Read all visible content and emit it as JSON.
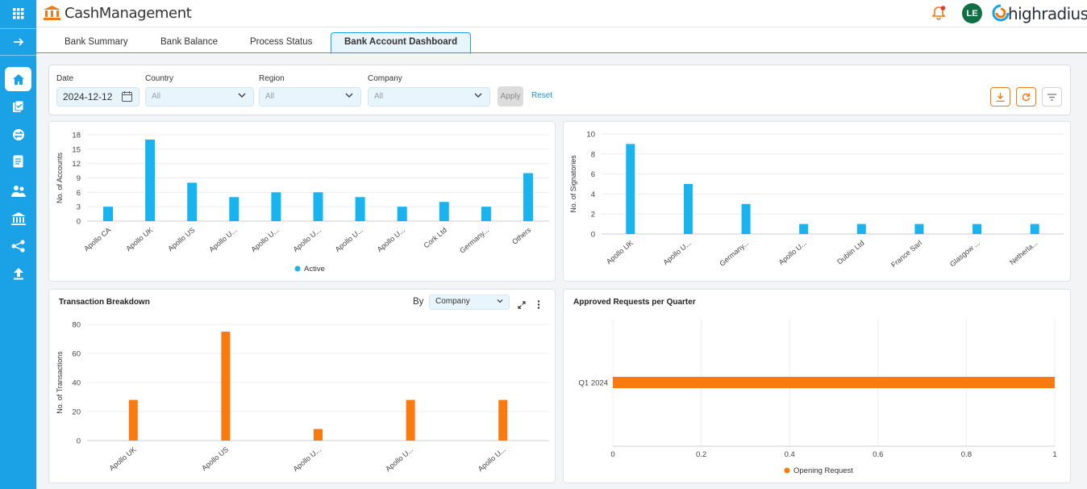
{
  "app": {
    "title": "CashManagement",
    "brand": "highradius",
    "user_initials": "LE"
  },
  "sidebar": {
    "items": [
      "grid-icon",
      "expand-arrow-icon",
      "home-icon",
      "tasks-icon",
      "transfer-icon",
      "document-icon",
      "users-icon",
      "bank-icon",
      "network-icon",
      "upload-icon"
    ]
  },
  "tabs": [
    "Bank Summary",
    "Bank Balance",
    "Process Status",
    "Bank Account Dashboard"
  ],
  "active_tab": "Bank Account Dashboard",
  "filters": {
    "date_label": "Date",
    "date_value": "2024-12-12",
    "country_label": "Country",
    "country_value": "All",
    "region_label": "Region",
    "region_value": "All",
    "company_label": "Company",
    "company_value": "All",
    "apply_label": "Apply",
    "reset_label": "Reset"
  },
  "panels": {
    "transaction_title": "Transaction Breakdown",
    "by_label": "By",
    "by_value": "Company",
    "approved_title": "Approved Requests per Quarter"
  },
  "colors": {
    "accent": "#1aa1e6",
    "orange": "#f97a0f",
    "bar_blue": "#19b3f0"
  },
  "chart_data": [
    {
      "type": "bar",
      "categories": [
        "Apollo CA",
        "Apollo UK",
        "Apollo US",
        "Apollo U...",
        "Apollo U...",
        "Apollo U...",
        "Apollo U...",
        "Apollo U...",
        "Cork Ltd",
        "Germany...",
        "Others"
      ],
      "series": [
        {
          "name": "Active",
          "values": [
            3,
            17,
            8,
            5,
            6,
            6,
            5,
            3,
            4,
            3,
            10
          ]
        }
      ],
      "ylabel": "No. of Accounts",
      "yticks": [
        0,
        3,
        6,
        9,
        12,
        15,
        18
      ],
      "ylim": [
        0,
        18
      ],
      "legend": "bottom"
    },
    {
      "type": "bar",
      "categories": [
        "Apollo UK",
        "Apollo U...",
        "Germany...",
        "Apollo U...",
        "Dublin Ltd",
        "France Sarl",
        "Glasgow ...",
        "Netherla..."
      ],
      "values": [
        9,
        5,
        3,
        1,
        1,
        1,
        1,
        1
      ],
      "ylabel": "No. of Signatories",
      "yticks": [
        0,
        2,
        4,
        6,
        8,
        10
      ],
      "ylim": [
        0,
        10
      ]
    },
    {
      "type": "bar",
      "title": "Transaction Breakdown",
      "categories": [
        "Apollo UK",
        "Apollo US",
        "Apollo U...",
        "Apollo U...",
        "Apollo U..."
      ],
      "values": [
        28,
        75,
        8,
        28,
        28
      ],
      "ylabel": "No. of Transactions",
      "yticks": [
        0,
        20,
        40,
        60,
        80
      ],
      "ylim": [
        0,
        80
      ]
    },
    {
      "type": "bar",
      "orientation": "horizontal",
      "title": "Approved Requests per Quarter",
      "categories": [
        "Q1 2024"
      ],
      "series": [
        {
          "name": "Opening Request",
          "values": [
            1
          ]
        }
      ],
      "xticks": [
        "0",
        "0.2",
        "0.4",
        "0.6",
        "0.8",
        "1"
      ],
      "xlim": [
        0,
        1
      ],
      "legend": "bottom"
    }
  ]
}
